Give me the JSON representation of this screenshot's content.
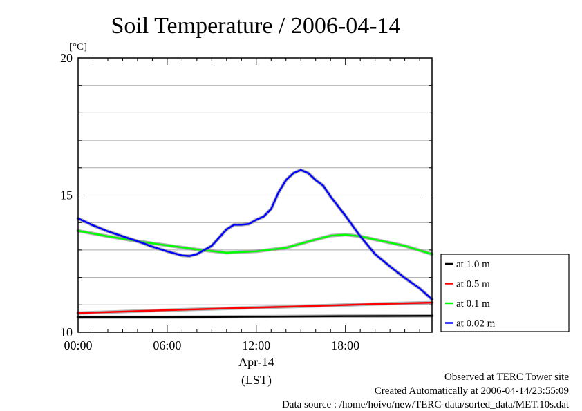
{
  "chart_data": {
    "type": "line",
    "title": "Soil Temperature / 2006-04-14",
    "ylabel": "[°C]",
    "xlabel_lines": [
      "Apr-14",
      "(LST)"
    ],
    "xlim": [
      0,
      23.833
    ],
    "ylim": [
      10,
      20
    ],
    "x_ticks": [
      0,
      6,
      12,
      18
    ],
    "x_tick_labels": [
      "00:00",
      "06:00",
      "12:00",
      "18:00"
    ],
    "y_ticks": [
      10,
      15,
      20
    ],
    "y_tick_labels": [
      "10",
      "15",
      "20"
    ],
    "y_grid": [
      11,
      12,
      13,
      14,
      15,
      16,
      17,
      18,
      19
    ],
    "grid": true,
    "legend_position": "right",
    "series": [
      {
        "name": "at 1.0 m",
        "color": "#000000",
        "x": [
          0,
          6,
          12,
          18,
          23.833
        ],
        "y": [
          10.55,
          10.55,
          10.57,
          10.59,
          10.6
        ]
      },
      {
        "name": "at 0.5 m",
        "color": "#ff0000",
        "x": [
          0,
          4,
          8,
          12,
          16,
          20,
          23.833
        ],
        "y": [
          10.7,
          10.77,
          10.84,
          10.9,
          10.96,
          11.03,
          11.08
        ]
      },
      {
        "name": "at 0.1 m",
        "color": "#00ff00",
        "x": [
          0,
          2,
          4,
          6,
          8,
          10,
          12,
          14,
          16,
          17,
          18,
          19,
          20,
          22,
          23.833
        ],
        "y": [
          13.7,
          13.5,
          13.32,
          13.17,
          13.02,
          12.9,
          12.95,
          13.08,
          13.38,
          13.52,
          13.56,
          13.5,
          13.38,
          13.15,
          12.85
        ]
      },
      {
        "name": "at 0.02 m",
        "color": "#0000ff",
        "x": [
          0,
          1,
          2,
          3,
          4,
          5,
          6,
          7,
          7.5,
          8,
          9,
          10,
          10.5,
          11,
          11.5,
          12,
          12.5,
          13,
          13.5,
          14,
          14.5,
          15,
          15.5,
          16,
          16.5,
          17,
          18,
          19,
          20,
          21,
          22,
          23,
          23.833
        ],
        "y": [
          14.15,
          13.9,
          13.68,
          13.5,
          13.32,
          13.12,
          12.95,
          12.8,
          12.78,
          12.85,
          13.15,
          13.75,
          13.92,
          13.92,
          13.95,
          14.1,
          14.22,
          14.5,
          15.1,
          15.55,
          15.8,
          15.92,
          15.8,
          15.55,
          15.35,
          14.95,
          14.25,
          13.5,
          12.85,
          12.4,
          11.98,
          11.6,
          11.2
        ]
      }
    ]
  },
  "footer": {
    "line1": "Observed at TERC Tower site",
    "line2": "Created Automatically at 2006-04-14/23:55:09",
    "line3": "Data source : /home/hoivo/new/TERC-data/sorted_data/MET.10s.dat"
  }
}
